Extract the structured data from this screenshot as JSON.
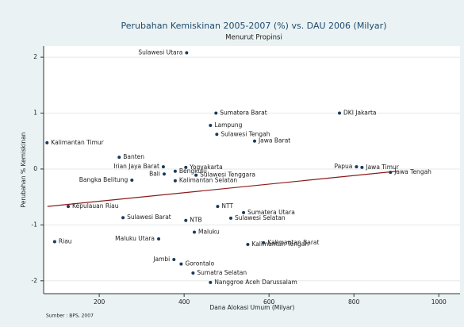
{
  "chart_data": {
    "type": "scatter",
    "title": "Perubahan Kemiskinan 2005-2007 (%) vs. DAU 2006 (Milyar)",
    "subtitle": "Menurut Propinsi",
    "xlabel": "Dana Alokasi Umum (Milyar)",
    "ylabel": "Perubahan % Kemiskinan",
    "source": "Sumber : BPS, 2007",
    "labels": [
      "Sulawesi Utara",
      "Sumatera Barat",
      "DKI Jakarta",
      "Kalimantan Timur",
      "Lampung",
      "Sulawesi Tengah",
      "Jawa Barat",
      "Banten",
      "Irian Jaya Barat",
      "Yogyakarta",
      "Papua",
      "Jawa Timur",
      "Jawa Tengah",
      "Bali",
      "Bengkulu",
      "Sulawesi Tenggara",
      "Kalimantan Selatan",
      "Bangka Belitung",
      "Kepulauan Riau",
      "NTT",
      "Sumatera Utara",
      "Sulawesi Barat",
      "Sulawesi Selatan",
      "NTB",
      "Maluku",
      "Riau",
      "Maluku Utara",
      "Kalimantan Tengah",
      "Kalimantan Barat",
      "Jambi",
      "Gorontalo",
      "Sumatra Selatan",
      "Nanggroe Aceh Darussalam"
    ],
    "x": [
      406,
      475,
      766,
      77,
      462,
      477,
      566,
      247,
      351,
      404,
      806,
      819,
      886,
      353,
      379,
      428,
      379,
      277,
      127,
      479,
      540,
      256,
      510,
      404,
      424,
      95,
      340,
      550,
      587,
      376,
      393,
      421,
      462
    ],
    "values": [
      2.08,
      1.0,
      1.0,
      0.47,
      0.78,
      0.62,
      0.5,
      0.21,
      0.04,
      0.03,
      0.04,
      0.03,
      -0.06,
      -0.09,
      -0.04,
      -0.11,
      -0.21,
      -0.2,
      -0.67,
      -0.67,
      -0.78,
      -0.87,
      -0.88,
      -0.92,
      -1.13,
      -1.3,
      -1.25,
      -1.35,
      -1.32,
      -1.62,
      -1.7,
      -1.86,
      -2.03
    ],
    "color": "#1a3a5c",
    "fit_line": {
      "x": [
        78,
        901
      ],
      "y": [
        -0.67,
        -0.04
      ],
      "color": "#8b1a1a"
    },
    "xlim": [
      69,
      1050
    ],
    "ylim": [
      -2.23,
      2.2
    ],
    "xticks": [
      200,
      400,
      600,
      800,
      1000
    ],
    "yticks": [
      -2,
      -1,
      0,
      1,
      2
    ],
    "grid": true
  }
}
